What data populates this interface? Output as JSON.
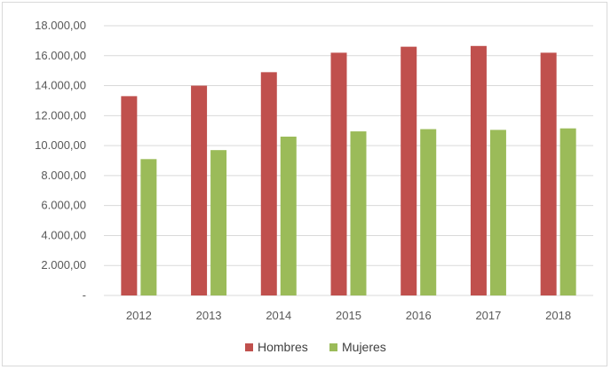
{
  "chart_data": {
    "type": "bar",
    "title": "",
    "xlabel": "",
    "ylabel": "",
    "categories": [
      "2012",
      "2013",
      "2014",
      "2015",
      "2016",
      "2017",
      "2018"
    ],
    "series": [
      {
        "name": "Hombres",
        "color": "#c0504d",
        "values": [
          13300,
          14000,
          14900,
          16200,
          16600,
          16650,
          16200
        ]
      },
      {
        "name": "Mujeres",
        "color": "#9bbb59",
        "values": [
          9100,
          9700,
          10600,
          10950,
          11100,
          11050,
          11150
        ]
      }
    ],
    "ylim": [
      0,
      18000
    ],
    "y_ticks": [
      {
        "value": 0,
        "label": "-"
      },
      {
        "value": 2000,
        "label": "2.000,00"
      },
      {
        "value": 4000,
        "label": "4.000,00"
      },
      {
        "value": 6000,
        "label": "6.000,00"
      },
      {
        "value": 8000,
        "label": "8.000,00"
      },
      {
        "value": 10000,
        "label": "10.000,00"
      },
      {
        "value": 12000,
        "label": "12.000,00"
      },
      {
        "value": 14000,
        "label": "14.000,00"
      },
      {
        "value": 16000,
        "label": "16.000,00"
      },
      {
        "value": 18000,
        "label": "18.000,00"
      }
    ],
    "grid": true,
    "gridline_color": "#d9d9d9",
    "legend_position": "bottom"
  }
}
